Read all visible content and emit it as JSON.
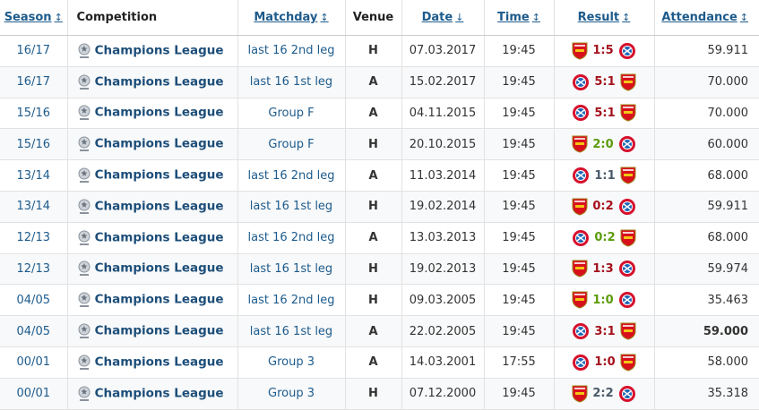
{
  "header": {
    "columns": [
      "Season",
      "Competition",
      "Matchday",
      "Venue",
      "Date",
      "Time",
      "Result",
      "Attendance"
    ]
  },
  "rows": [
    {
      "season": "16/17",
      "competition": "Champions League",
      "matchday": "last 16 2nd leg",
      "venue": "H",
      "date": "07.03.2017",
      "time": "19:45",
      "result": "1:5",
      "attendance": "59.911"
    },
    {
      "season": "16/17",
      "competition": "Champions League",
      "matchday": "last 16 1st leg",
      "venue": "A",
      "date": "15.02.2017",
      "time": "19:45",
      "result": "5:1",
      "attendance": "70.000"
    },
    {
      "season": "15/16",
      "competition": "Champions League",
      "matchday": "Group F",
      "venue": "A",
      "date": "04.11.2015",
      "time": "19:45",
      "result": "5:1",
      "attendance": "70.000"
    },
    {
      "season": "15/16",
      "competition": "Champions League",
      "matchday": "Group F",
      "venue": "H",
      "date": "20.10.2015",
      "time": "19:45",
      "result": "2:0",
      "attendance": "60.000"
    },
    {
      "season": "13/14",
      "competition": "Champions League",
      "matchday": "last 16 2nd leg",
      "venue": "A",
      "date": "11.03.2014",
      "time": "19:45",
      "result": "1:1",
      "attendance": "68.000"
    },
    {
      "season": "13/14",
      "competition": "Champions League",
      "matchday": "last 16 1st leg",
      "venue": "H",
      "date": "19.02.2014",
      "time": "19:45",
      "result": "0:2",
      "attendance": "59.911"
    },
    {
      "season": "12/13",
      "competition": "Champions League",
      "matchday": "last 16 2nd leg",
      "venue": "A",
      "date": "13.03.2013",
      "time": "19:45",
      "result": "0:2",
      "attendance": "68.000"
    },
    {
      "season": "12/13",
      "competition": "Champions League",
      "matchday": "last 16 1st leg",
      "venue": "H",
      "date": "19.02.2013",
      "time": "19:45",
      "result": "1:3",
      "attendance": "59.974"
    },
    {
      "season": "04/05",
      "competition": "Champions League",
      "matchday": "last 16 2nd leg",
      "venue": "H",
      "date": "09.03.2005",
      "time": "19:45",
      "result": "1:0",
      "attendance": "35.463"
    },
    {
      "season": "04/05",
      "competition": "Champions League",
      "matchday": "last 16 1st leg",
      "venue": "A",
      "date": "22.02.2005",
      "time": "19:45",
      "result": "3:1",
      "attendance": "59.000"
    },
    {
      "season": "00/01",
      "competition": "Champions League",
      "matchday": "Group 3",
      "venue": "A",
      "date": "14.03.2001",
      "time": "17:55",
      "result": "1:0",
      "attendance": "58.000"
    },
    {
      "season": "00/01",
      "competition": "Champions League",
      "matchday": "Group 3",
      "venue": "H",
      "date": "07.12.2000",
      "time": "19:45",
      "result": "2:2",
      "attendance": "35.318"
    }
  ]
}
